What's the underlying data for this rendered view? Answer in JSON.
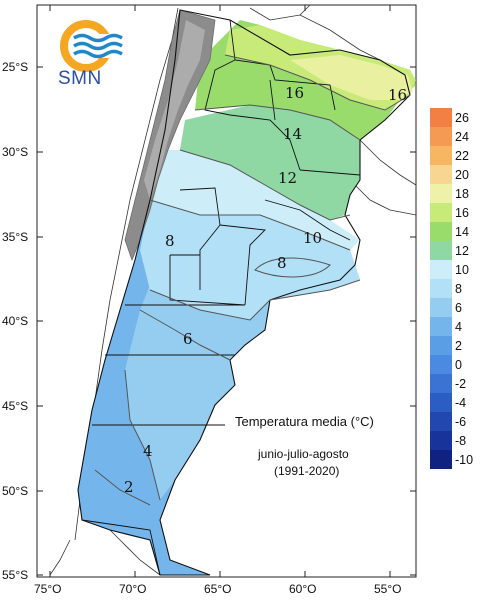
{
  "logo": {
    "text": "SMN"
  },
  "caption": {
    "title": "Temperatura media (°C)",
    "period": "junio-julio-agosto",
    "years": "(1991-2020)"
  },
  "axes": {
    "lat_ticks": [
      "25°S",
      "30°S",
      "35°S",
      "40°S",
      "45°S",
      "50°S",
      "55°S"
    ],
    "lon_ticks": [
      "75°O",
      "70°O",
      "65°O",
      "60°O",
      "55°O"
    ]
  },
  "contour_labels": [
    "16",
    "16",
    "14",
    "12",
    "10",
    "8",
    "8",
    "6",
    "4",
    "2"
  ],
  "legend": {
    "levels": [
      {
        "label": "26",
        "color": "#f28045"
      },
      {
        "label": "24",
        "color": "#f59a52"
      },
      {
        "label": "22",
        "color": "#f7b762"
      },
      {
        "label": "20",
        "color": "#f8d591"
      },
      {
        "label": "18",
        "color": "#eef2a8"
      },
      {
        "label": "16",
        "color": "#c8ea78"
      },
      {
        "label": "14",
        "color": "#99dc6c"
      },
      {
        "label": "12",
        "color": "#8fd7a3"
      },
      {
        "label": "10",
        "color": "#cdeef9"
      },
      {
        "label": "8",
        "color": "#b2e0f6"
      },
      {
        "label": "6",
        "color": "#95cdf1"
      },
      {
        "label": "4",
        "color": "#74b6ec"
      },
      {
        "label": "2",
        "color": "#5a9ee6"
      },
      {
        "label": "0",
        "color": "#4a8ae0"
      },
      {
        "label": "-2",
        "color": "#3a73d4"
      },
      {
        "label": "-4",
        "color": "#2c5dc4"
      },
      {
        "label": "-6",
        "color": "#2248b0"
      },
      {
        "label": "-8",
        "color": "#18349a"
      },
      {
        "label": "-10",
        "color": "#0f2280"
      }
    ]
  }
}
